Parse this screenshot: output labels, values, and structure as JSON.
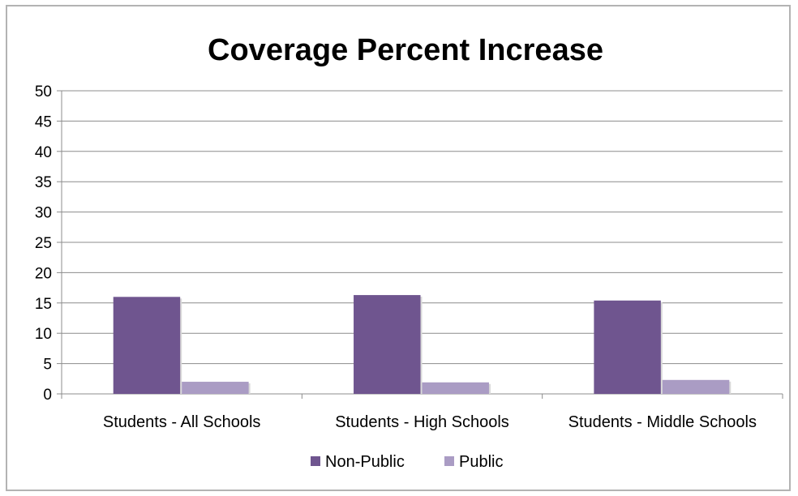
{
  "chart_data": {
    "type": "bar",
    "title": "Coverage Percent Increase",
    "xlabel": "",
    "ylabel": "",
    "categories": [
      "Students - All Schools",
      "Students - High Schools",
      "Students - Middle Schools"
    ],
    "series": [
      {
        "name": "Non-Public",
        "values": [
          16.0,
          16.3,
          15.4
        ],
        "color": "#6f558f"
      },
      {
        "name": "Public",
        "values": [
          2.0,
          1.9,
          2.3
        ],
        "color": "#aa9cc4"
      }
    ],
    "ylim": [
      0,
      50
    ],
    "yticks": [
      0,
      5,
      10,
      15,
      20,
      25,
      30,
      35,
      40,
      45,
      50
    ],
    "grid": true,
    "legend_position": "bottom"
  }
}
